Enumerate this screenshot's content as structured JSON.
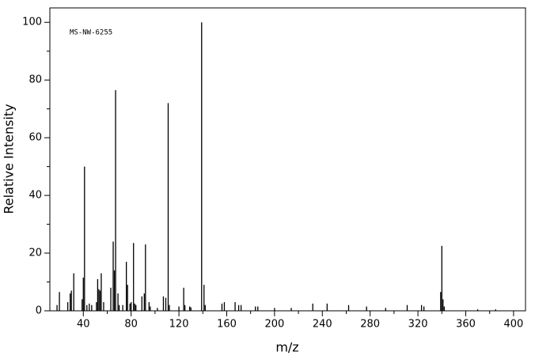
{
  "chart_data": {
    "type": "spectrum",
    "annotation": "MS-NW-6255",
    "xlabel": "m/z",
    "ylabel": "Relative Intensity",
    "x": [
      18,
      20,
      27,
      29,
      30,
      32,
      39,
      40,
      41,
      43,
      45,
      47,
      51,
      52,
      53,
      54,
      55,
      57,
      63,
      65,
      66,
      67,
      69,
      70,
      73,
      76,
      77,
      79,
      80,
      82,
      83,
      84,
      89,
      91,
      92,
      95,
      96,
      102,
      107,
      109,
      111,
      112,
      120,
      124,
      125,
      129,
      130,
      139,
      141,
      142,
      156,
      158,
      167,
      170,
      172,
      184,
      186,
      200,
      214,
      232,
      244,
      262,
      277,
      293,
      311,
      323,
      325,
      339,
      340,
      341,
      342,
      370,
      385
    ],
    "values": [
      2,
      6.5,
      3,
      6,
      7,
      13,
      4,
      11.5,
      50,
      2,
      2.5,
      2,
      3,
      11,
      7.5,
      7,
      13,
      3,
      8,
      24,
      14,
      76.5,
      6,
      2,
      2,
      17,
      9,
      2.5,
      3,
      23.5,
      2.5,
      2,
      5,
      6,
      23,
      3,
      1.5,
      1,
      5,
      4.5,
      72,
      2,
      1.5,
      8,
      2,
      1.5,
      1.2,
      100,
      9,
      2,
      2.5,
      3,
      3,
      2,
      2,
      1.5,
      1.5,
      1,
      1,
      2.5,
      2.5,
      2,
      1.5,
      1,
      2,
      2,
      1.5,
      6.5,
      22.5,
      4,
      1.5,
      0.5,
      0.5
    ],
    "color": "#000000",
    "xlim": [
      12,
      410
    ],
    "ylim": [
      0,
      105
    ],
    "xticks": [
      40,
      80,
      120,
      160,
      200,
      240,
      280,
      320,
      360,
      400
    ],
    "yticks": [
      0,
      20,
      40,
      60,
      80,
      100
    ]
  }
}
